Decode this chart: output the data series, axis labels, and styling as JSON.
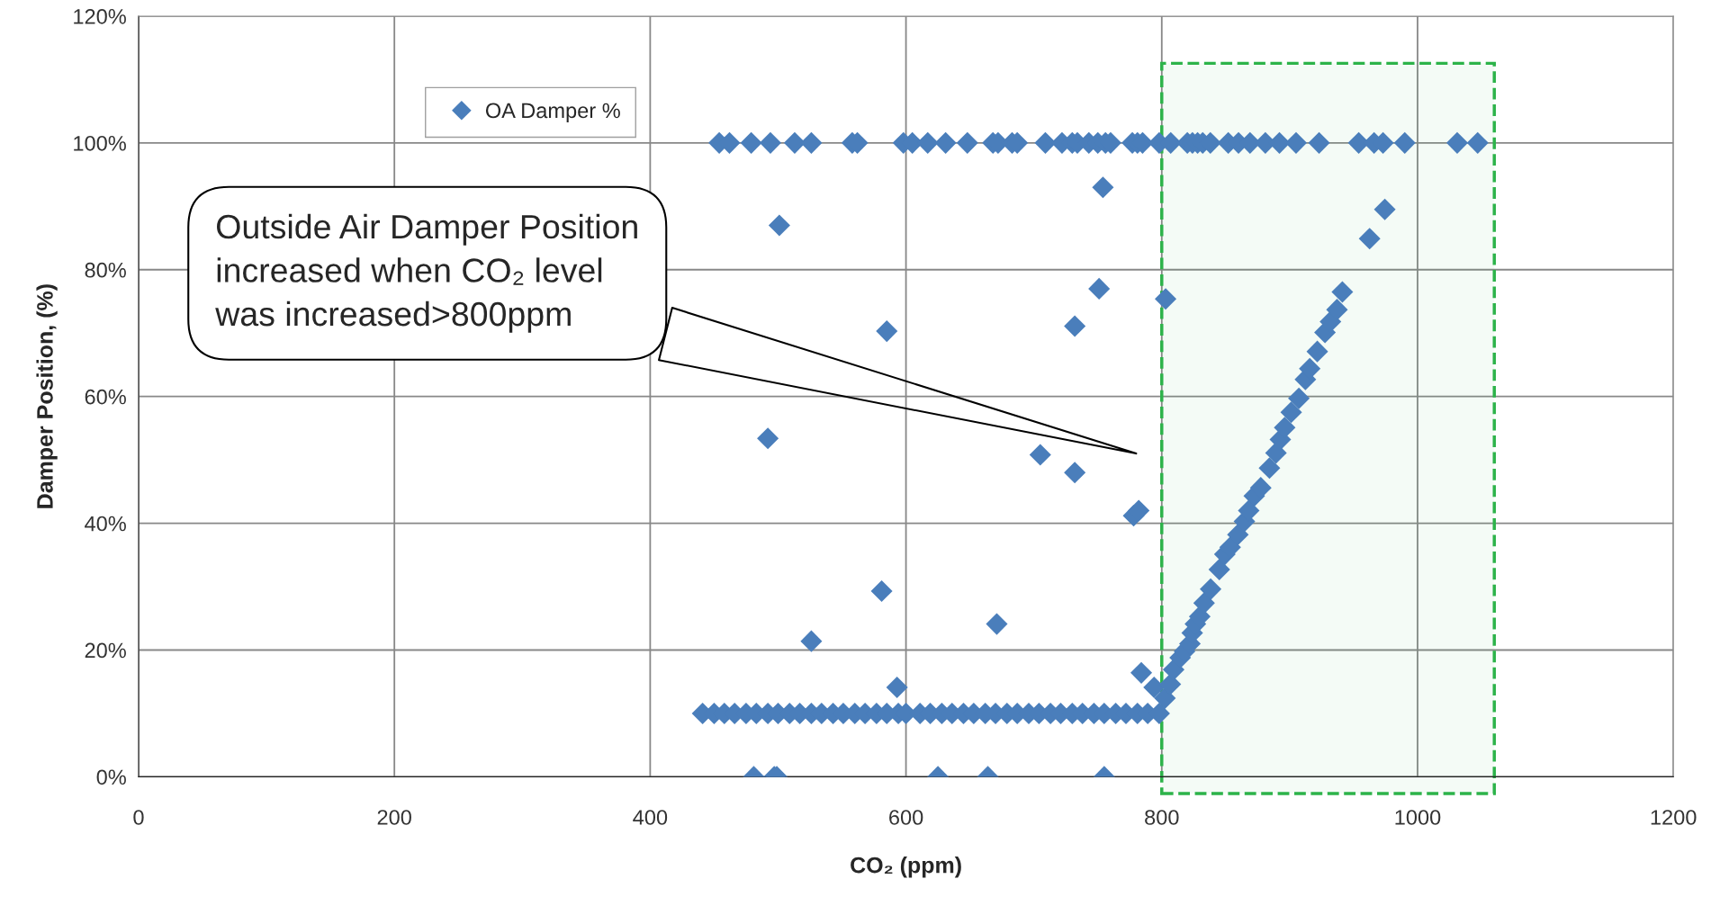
{
  "chart_data": {
    "type": "scatter",
    "xlabel": "CO₂ (ppm)",
    "ylabel": "Damper Position, (%)",
    "xlim": [
      0,
      1200
    ],
    "xticks": [
      0,
      200,
      400,
      600,
      800,
      1000,
      1200
    ],
    "ylim": [
      0,
      120
    ],
    "yticks": [
      {
        "value": 0,
        "label": "0%"
      },
      {
        "value": 20,
        "label": "20%"
      },
      {
        "value": 40,
        "label": "40%"
      },
      {
        "value": 60,
        "label": "60%"
      },
      {
        "value": 80,
        "label": "80%"
      },
      {
        "value": 100,
        "label": "100%"
      },
      {
        "value": 120,
        "label": "120%"
      }
    ],
    "grid": true,
    "legend": "top left",
    "marker": "diamond",
    "bands": [
      {
        "axis": "x",
        "from": 800,
        "to": 1060,
        "color": "#2db34a"
      }
    ],
    "annotations": [
      "Outside Air Damper Position\nincreased when CO₂ level\nwas increased>800ppm"
    ],
    "series": [
      {
        "name": "OA Damper %",
        "color": "#4a7ebb",
        "x": [
          454,
          462,
          479,
          494,
          513,
          526,
          558,
          562,
          598,
          605,
          617,
          631,
          648,
          668,
          672,
          683,
          687,
          709,
          722,
          730,
          734,
          743,
          750,
          756,
          760,
          777,
          781,
          785,
          798,
          807,
          820,
          824,
          828,
          832,
          838,
          852,
          860,
          869,
          881,
          892,
          905,
          923,
          954,
          966,
          973,
          990,
          1031,
          1047,
          441,
          450,
          458,
          466,
          475,
          483,
          492,
          500,
          509,
          517,
          526,
          534,
          543,
          551,
          560,
          568,
          577,
          585,
          594,
          600,
          611,
          619,
          628,
          636,
          645,
          653,
          662,
          670,
          679,
          687,
          696,
          704,
          713,
          721,
          730,
          738,
          747,
          755,
          764,
          772,
          781,
          789,
          798,
          481,
          497,
          499,
          625,
          664,
          755,
          501,
          526,
          492,
          585,
          581,
          593,
          671,
          705,
          732,
          732,
          751,
          754,
          778,
          782,
          784,
          794,
          803,
          802.5,
          806.7,
          809.3,
          814.4,
          817.8,
          822,
          823.8,
          826.3,
          829.7,
          833.1,
          838.2,
          845,
          849.3,
          853.5,
          859.5,
          864.6,
          868,
          872.3,
          877.4,
          884.2,
          889.3,
          892.7,
          896.1,
          901.2,
          907.2,
          912.3,
          915.7,
          921.6,
          927.6,
          931.9,
          937,
          941.2,
          962.5,
          974.4
        ],
        "values": [
          100,
          100,
          100,
          100,
          100,
          100,
          100,
          100,
          100,
          100,
          100,
          100,
          100,
          100,
          100,
          100,
          100,
          100,
          100,
          100,
          100,
          100,
          100,
          100,
          100,
          100,
          100,
          100,
          100,
          100,
          100,
          100,
          100,
          100,
          100,
          100,
          100,
          100,
          100,
          100,
          100,
          100,
          100,
          100,
          100,
          100,
          100,
          100,
          10,
          10,
          10,
          10,
          10,
          10,
          10,
          10,
          10,
          10,
          10,
          10,
          10,
          10,
          10,
          10,
          10,
          10,
          10,
          10,
          10,
          10,
          10,
          10,
          10,
          10,
          10,
          10,
          10,
          10,
          10,
          10,
          10,
          10,
          10,
          10,
          10,
          10,
          10,
          10,
          10,
          10,
          10,
          0,
          0,
          0,
          0,
          0,
          0,
          87,
          21.4,
          53.4,
          70.3,
          29.3,
          14.1,
          24.1,
          50.8,
          48,
          71.1,
          77,
          93,
          41.2,
          42,
          16.4,
          14.1,
          75.4,
          12.4,
          14.6,
          16.9,
          18.8,
          19.8,
          21,
          22.7,
          24.1,
          25.3,
          27.4,
          29.6,
          32.7,
          35.1,
          36.2,
          38.2,
          40.3,
          42,
          44.3,
          45.6,
          48.7,
          51.1,
          53.2,
          55.1,
          57.5,
          59.7,
          62.7,
          64.4,
          67.1,
          70.1,
          71.8,
          73.7,
          76.5,
          84.9,
          89.5
        ]
      }
    ]
  }
}
